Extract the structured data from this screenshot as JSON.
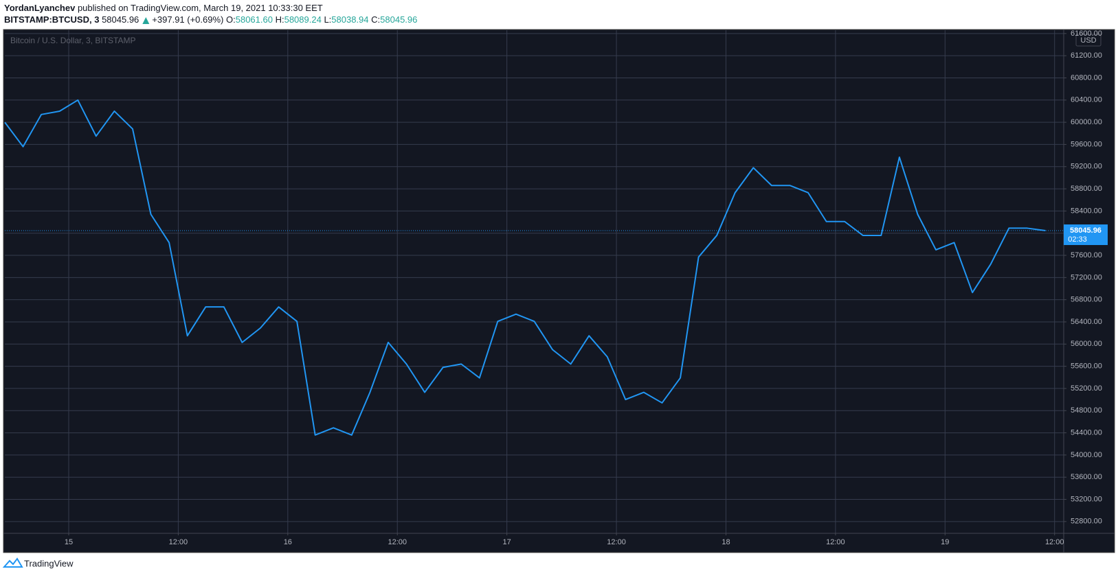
{
  "header": {
    "author": "YordanLyanchev",
    "published": "published on TradingView.com, March 19, 2021 10:33:30 EET",
    "symbol": "BITSTAMP:BTCUSD, 3",
    "change": "+397.91 (+0.69%)",
    "open_label": "O:",
    "open": "58061.60",
    "high_label": "H:",
    "high": "58089.24",
    "low_label": "L:",
    "low": "58038.94",
    "close_label": "C:",
    "close": "58045.96"
  },
  "chart_data": {
    "type": "line",
    "title": "Bitcoin / U.S. Dollar, 3, BITSTAMP",
    "currency": "USD",
    "countdown": "02:33",
    "series": [
      {
        "name": "BTCUSD",
        "color": "#2196f3",
        "values": [
          60000,
          59560,
          60140,
          60200,
          60400,
          59750,
          60200,
          59880,
          58340,
          57830,
          56150,
          56670,
          56670,
          56030,
          56290,
          56670,
          56410,
          54360,
          54490,
          54360,
          55130,
          56030,
          55640,
          55130,
          55580,
          55640,
          55390,
          56410,
          56540,
          56410,
          55900,
          55640,
          56150,
          55770,
          55000,
          55130,
          54940,
          55390,
          57570,
          57960,
          58730,
          59180,
          58860,
          58860,
          58730,
          58210,
          58210,
          57960,
          57960,
          59370,
          58340,
          57700,
          57830,
          56930,
          57440,
          58090,
          58090,
          58045.96
        ]
      }
    ],
    "xlim": [
      0,
      58
    ],
    "xticks": [
      {
        "value": 3.5,
        "label": "15"
      },
      {
        "value": 9.5,
        "label": "12:00"
      },
      {
        "value": 15.5,
        "label": "16"
      },
      {
        "value": 21.5,
        "label": "12:00"
      },
      {
        "value": 27.5,
        "label": "17"
      },
      {
        "value": 33.5,
        "label": "12:00"
      },
      {
        "value": 39.5,
        "label": "18"
      },
      {
        "value": 45.5,
        "label": "12:00"
      },
      {
        "value": 51.5,
        "label": "19"
      },
      {
        "value": 57.5,
        "label": "12:00"
      }
    ],
    "ylim": [
      52600,
      61660
    ],
    "yticks": [
      {
        "value": 52800,
        "label": "52800.00"
      },
      {
        "value": 53200,
        "label": "53200.00"
      },
      {
        "value": 53600,
        "label": "53600.00"
      },
      {
        "value": 54000,
        "label": "54000.00"
      },
      {
        "value": 54400,
        "label": "54400.00"
      },
      {
        "value": 54800,
        "label": "54800.00"
      },
      {
        "value": 55200,
        "label": "55200.00"
      },
      {
        "value": 55600,
        "label": "55600.00"
      },
      {
        "value": 56000,
        "label": "56000.00"
      },
      {
        "value": 56400,
        "label": "56400.00"
      },
      {
        "value": 56800,
        "label": "56800.00"
      },
      {
        "value": 57200,
        "label": "57200.00"
      },
      {
        "value": 57600,
        "label": "57600.00"
      },
      {
        "value": 58000,
        "label": "58000.00"
      },
      {
        "value": 58400,
        "label": "58400.00"
      },
      {
        "value": 58800,
        "label": "58800.00"
      },
      {
        "value": 59200,
        "label": "59200.00"
      },
      {
        "value": 59600,
        "label": "59600.00"
      },
      {
        "value": 60000,
        "label": "60000.00"
      },
      {
        "value": 60400,
        "label": "60400.00"
      },
      {
        "value": 60800,
        "label": "60800.00"
      },
      {
        "value": 61200,
        "label": "61200.00"
      },
      {
        "value": 61600,
        "label": "61600.00"
      }
    ],
    "grid": true
  },
  "footer": {
    "brand": "TradingView"
  }
}
